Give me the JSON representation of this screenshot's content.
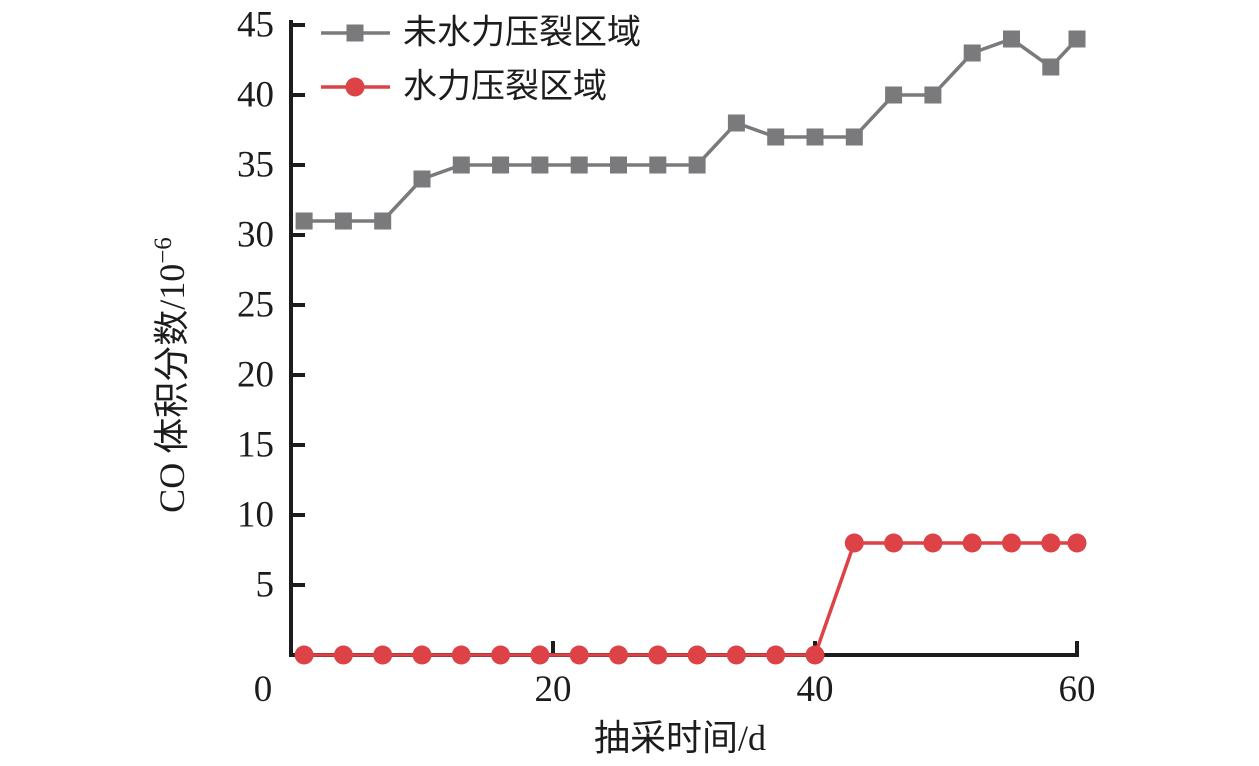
{
  "chart_data": {
    "type": "line",
    "title": "",
    "xlabel": "抽采时间/d",
    "ylabel": "CO 体积分数/10⁻⁶",
    "ylabel_base": "CO 体积分数/10",
    "ylabel_exponent": "−6",
    "xlim": [
      0,
      60
    ],
    "ylim": [
      0,
      45
    ],
    "xticks": [
      0,
      20,
      40,
      60
    ],
    "yticks": [
      0,
      5,
      10,
      15,
      20,
      25,
      30,
      35,
      40,
      45
    ],
    "grid": false,
    "legend_position": "top-left-inside",
    "axis_color": "#1c1c1c",
    "x": [
      1,
      4,
      7,
      10,
      13,
      16,
      19,
      22,
      25,
      28,
      31,
      34,
      37,
      40,
      43,
      46,
      49,
      52,
      55,
      58,
      60
    ],
    "series": [
      {
        "name": "未水力压裂区域",
        "marker": "square",
        "color": "#7a7a7c",
        "values": [
          31,
          31,
          31,
          34,
          35,
          35,
          35,
          35,
          35,
          35,
          35,
          38,
          37,
          37,
          37,
          40,
          40,
          43,
          44,
          42,
          44
        ]
      },
      {
        "name": "水力压裂区域",
        "marker": "circle",
        "color": "#dc4246",
        "values": [
          0,
          0,
          0,
          0,
          0,
          0,
          0,
          0,
          0,
          0,
          0,
          0,
          0,
          0,
          8,
          8,
          8,
          8,
          8,
          8,
          8
        ]
      }
    ]
  }
}
